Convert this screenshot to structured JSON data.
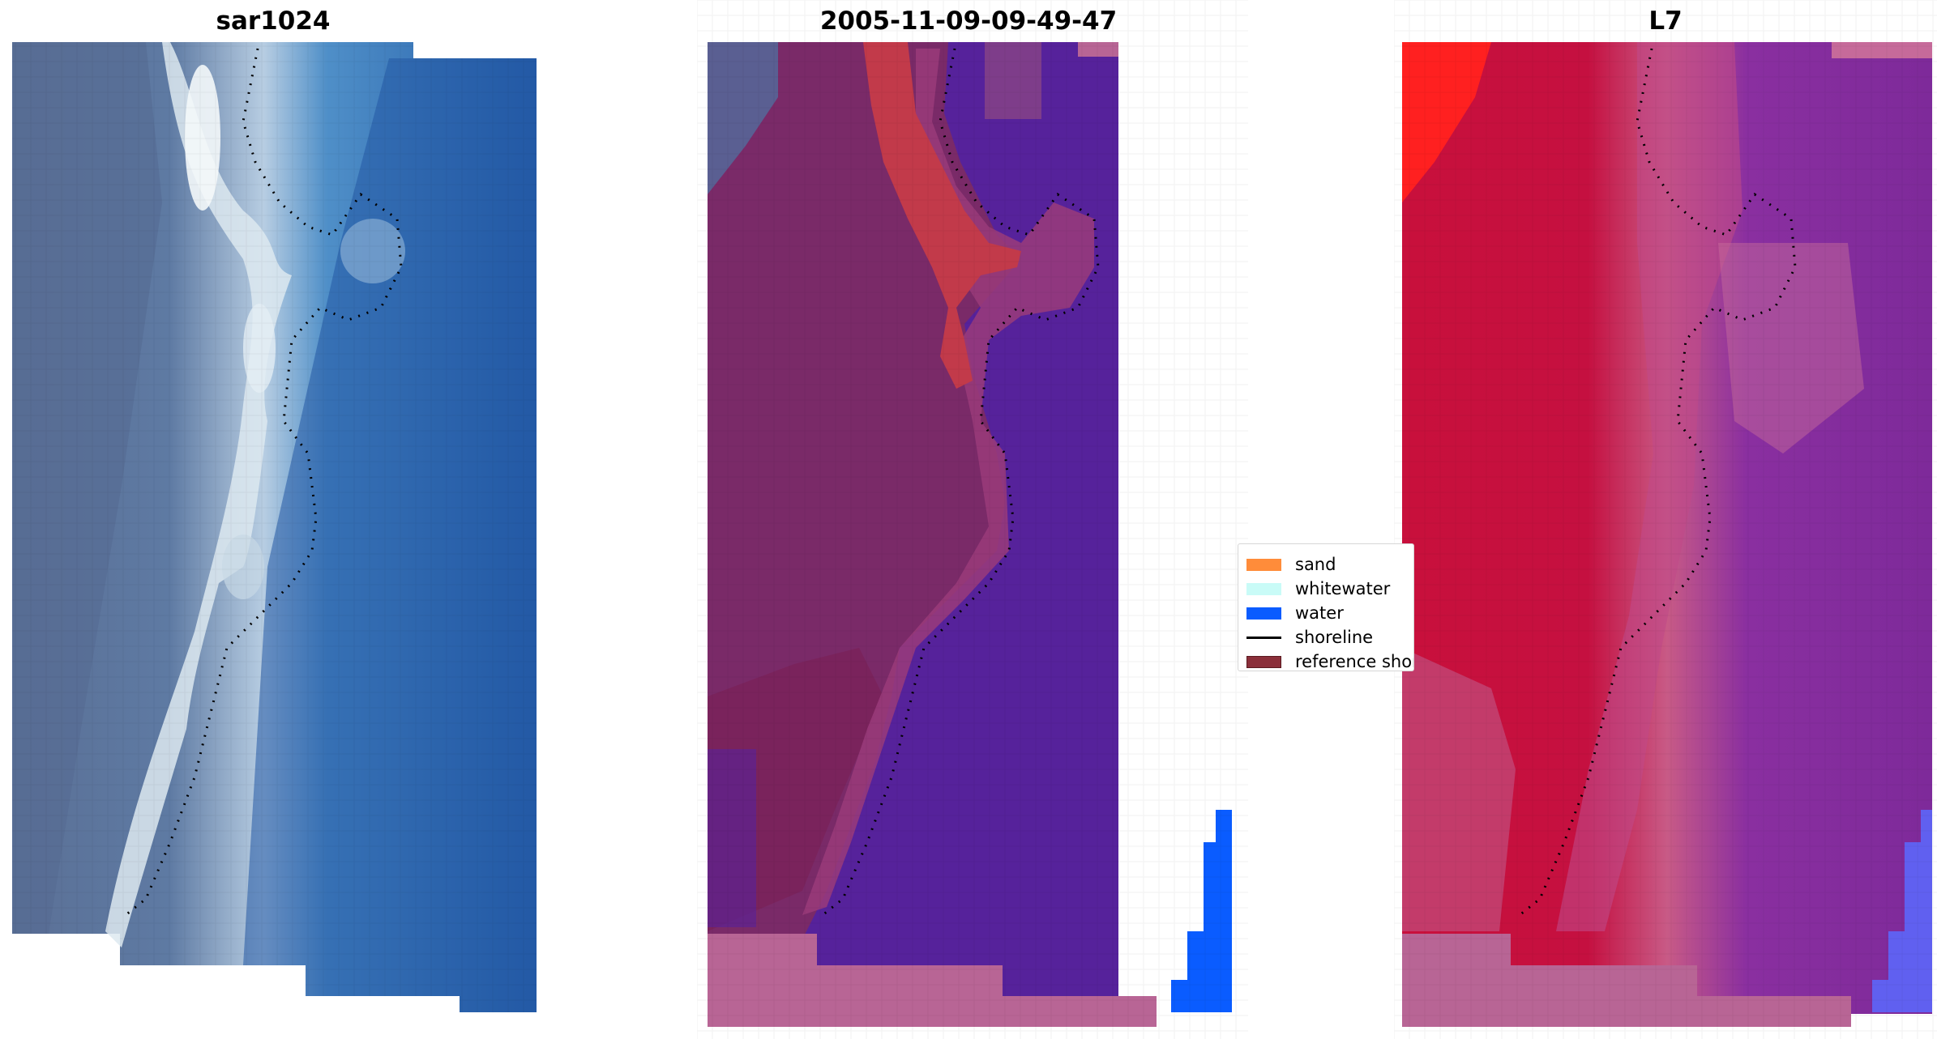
{
  "panels": [
    {
      "title": "sar1024"
    },
    {
      "title": "2005-11-09-09-49-47"
    },
    {
      "title": "L7"
    }
  ],
  "legend": {
    "items": [
      {
        "label": "sand",
        "color": "#ff8c3a",
        "kind": "patch"
      },
      {
        "label": "whitewater",
        "color": "#c9fbf7",
        "kind": "patch"
      },
      {
        "label": "water",
        "color": "#0a5cff",
        "kind": "patch"
      },
      {
        "label": "shoreline",
        "color": "#000000",
        "kind": "line"
      },
      {
        "label": "reference shoreline",
        "color": "#8b2f3a",
        "kind": "patch"
      }
    ]
  },
  "colors": {
    "rgb_water": "#2a66a8",
    "rgb_surf": "#e6f2f5",
    "rgb_land": "#5a6e96",
    "class_land": "#7a2a68",
    "class_water": "#56229b",
    "class_sand_hilite": "#c23a4a",
    "nodata": "#b86595",
    "l7_land": "#c8103c",
    "l7_water": "#80289c"
  }
}
